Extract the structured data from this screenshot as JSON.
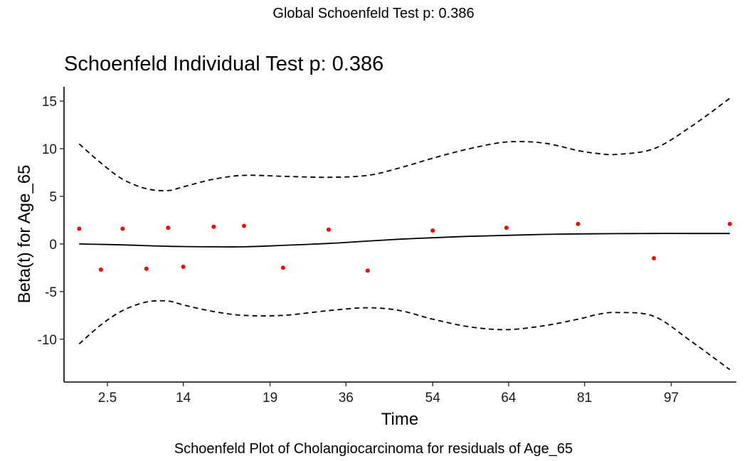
{
  "global_title": "Global Schoenfeld Test p: 0.386",
  "footer_caption": "Schoenfeld Plot of Cholangiocarcinoma for residuals of Age_65",
  "chart_data": {
    "type": "scatter",
    "title": "Schoenfeld Individual Test p: 0.386",
    "xlabel": "Time",
    "ylabel": "Beta(t) for Age_65",
    "x_tick_labels": [
      "2.5",
      "14",
      "19",
      "36",
      "54",
      "64",
      "81",
      "97"
    ],
    "x_tick_positions": [
      2,
      5.5,
      9.5,
      13,
      17,
      20.5,
      24,
      28
    ],
    "y_ticks": [
      15,
      10,
      5,
      0,
      -5,
      -10
    ],
    "xlim": [
      0,
      31
    ],
    "ylim": [
      -14.5,
      16.5
    ],
    "grid": false,
    "colors": {
      "points": "#ff0000",
      "lines": "#000000"
    },
    "points": [
      {
        "x": 0.7,
        "y": 1.6
      },
      {
        "x": 1.7,
        "y": -2.7
      },
      {
        "x": 2.7,
        "y": 1.6
      },
      {
        "x": 3.8,
        "y": -2.6
      },
      {
        "x": 4.8,
        "y": 1.7
      },
      {
        "x": 5.5,
        "y": -2.4
      },
      {
        "x": 6.9,
        "y": 1.8
      },
      {
        "x": 8.3,
        "y": 1.9
      },
      {
        "x": 10.1,
        "y": -2.5
      },
      {
        "x": 12.2,
        "y": 1.5
      },
      {
        "x": 14.0,
        "y": -2.8
      },
      {
        "x": 17.0,
        "y": 1.4
      },
      {
        "x": 20.4,
        "y": 1.7
      },
      {
        "x": 23.7,
        "y": 2.1
      },
      {
        "x": 27.2,
        "y": -1.5
      },
      {
        "x": 30.7,
        "y": 2.1
      }
    ],
    "series": [
      {
        "name": "fit",
        "style": "solid",
        "x": [
          0.7,
          2.7,
          4.8,
          6.9,
          8.3,
          10.1,
          12.2,
          14.0,
          15.5,
          17.0,
          18.7,
          20.4,
          22.1,
          23.7,
          25.5,
          27.2,
          28.9,
          30.7
        ],
        "y": [
          0.0,
          -0.1,
          -0.25,
          -0.3,
          -0.3,
          -0.15,
          0.05,
          0.3,
          0.5,
          0.65,
          0.8,
          0.9,
          1.0,
          1.05,
          1.08,
          1.1,
          1.1,
          1.1
        ]
      },
      {
        "name": "upper",
        "style": "dashed",
        "x": [
          0.7,
          1.7,
          2.7,
          3.8,
          4.8,
          5.5,
          6.9,
          8.3,
          10.1,
          12.2,
          14.0,
          15.5,
          17.0,
          18.7,
          20.4,
          22.1,
          23.7,
          24.6,
          25.5,
          27.2,
          28.9,
          30.7
        ],
        "y": [
          10.5,
          8.5,
          6.8,
          5.8,
          5.6,
          6.0,
          6.8,
          7.2,
          7.1,
          7.0,
          7.2,
          8.0,
          9.0,
          10.0,
          10.7,
          10.6,
          9.8,
          9.5,
          9.4,
          10.0,
          12.3,
          15.3
        ]
      },
      {
        "name": "lower",
        "style": "dashed",
        "x": [
          0.7,
          1.7,
          2.7,
          3.8,
          4.8,
          5.5,
          6.9,
          8.3,
          10.1,
          12.2,
          14.0,
          15.5,
          17.0,
          18.7,
          20.4,
          22.1,
          23.7,
          24.6,
          25.5,
          27.2,
          28.9,
          30.7
        ],
        "y": [
          -10.5,
          -8.5,
          -7.0,
          -6.1,
          -6.0,
          -6.4,
          -7.1,
          -7.5,
          -7.5,
          -7.0,
          -6.7,
          -7.0,
          -7.9,
          -8.7,
          -9.0,
          -8.6,
          -7.9,
          -7.4,
          -7.2,
          -7.6,
          -10.2,
          -13.2
        ]
      }
    ]
  }
}
